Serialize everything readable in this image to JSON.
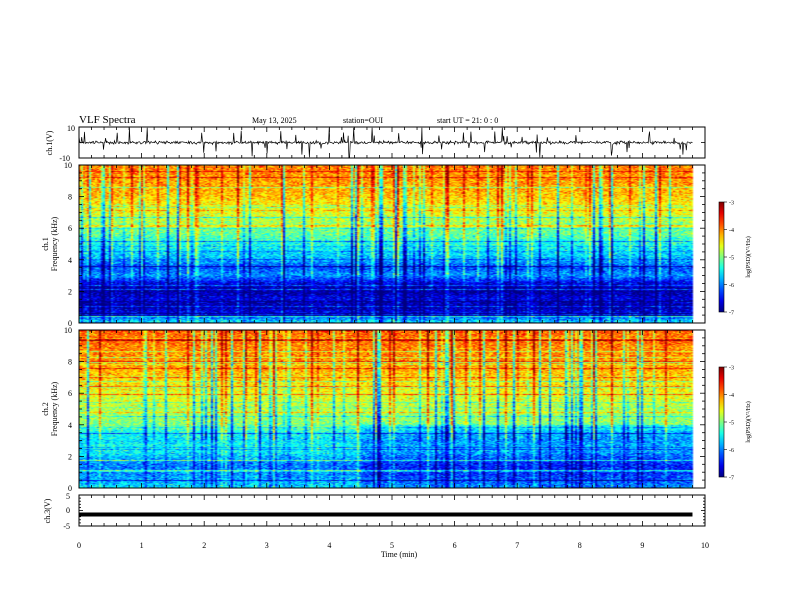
{
  "header": {
    "title": "VLF Spectra",
    "date": "May 13, 2025",
    "station": "station=OUI",
    "start": "start  UT  =   21: 0  : 0"
  },
  "panels": {
    "ch1_wave": {
      "ylabel": "ch.1(V)",
      "ytick_top": "10",
      "ytick_bottom": "-10"
    },
    "ch1_spec": {
      "ylabel_line1": "ch.1",
      "ylabel_line2": "Frequency  (kHz)"
    },
    "ch2_spec": {
      "ylabel_line1": "ch.2",
      "ylabel_line2": "Frequency  (kHz)"
    },
    "ch3_wave": {
      "ylabel": "ch.3(V)",
      "ytick_top": "5",
      "ytick_mid": "0",
      "ytick_bottom": "-5"
    }
  },
  "colorbar": {
    "label": "log(PSD)(V²/Hz)",
    "ticks": [
      "-3",
      "-4",
      "-5",
      "-6",
      "-7"
    ]
  },
  "xaxis": {
    "label": "Time  (min)"
  },
  "chart_data": [
    {
      "type": "line",
      "name": "ch.1(V)",
      "xlabel": "Time (min)",
      "xlim": [
        0,
        10
      ],
      "ylim": [
        -10,
        10
      ],
      "description_level": 0,
      "baseline": 0,
      "data_end_min": 9.8
    },
    {
      "type": "heatmap",
      "name": "ch.1",
      "xlabel": "Time (min)",
      "ylabel": "Frequency (kHz)",
      "xlim": [
        0,
        10
      ],
      "ylim": [
        0,
        10
      ],
      "x_ticks": [
        0,
        1,
        2,
        3,
        4,
        5,
        6,
        7,
        8,
        9,
        10
      ],
      "y_ticks": [
        0,
        2,
        4,
        6,
        8,
        10
      ],
      "colorbar_range": [
        -7,
        -3
      ],
      "data_end_min": 9.8,
      "freq_profile_khz": [
        0,
        0.5,
        1,
        1.5,
        2,
        2.5,
        3,
        3.5,
        4,
        5,
        6,
        7,
        8,
        9,
        10
      ],
      "level_profile": [
        -5.5,
        -6.4,
        -6.9,
        -6.6,
        -6.9,
        -6.6,
        -5.9,
        -6.2,
        -5.8,
        -5.4,
        -5.0,
        -4.6,
        -4.3,
        -4.1,
        -4.0
      ]
    },
    {
      "type": "heatmap",
      "name": "ch.2",
      "xlabel": "Time (min)",
      "ylabel": "Frequency (kHz)",
      "xlim": [
        0,
        10
      ],
      "ylim": [
        0,
        10
      ],
      "x_ticks": [
        0,
        1,
        2,
        3,
        4,
        5,
        6,
        7,
        8,
        9,
        10
      ],
      "y_ticks": [
        0,
        2,
        4,
        6,
        8,
        10
      ],
      "colorbar_range": [
        -7,
        -3
      ],
      "data_end_min": 9.8,
      "freq_profile_khz": [
        0,
        0.5,
        1,
        1.5,
        2,
        2.5,
        3,
        3.5,
        4,
        5,
        6,
        7,
        8,
        9,
        10
      ],
      "level_profile": [
        -5.6,
        -5.8,
        -6.0,
        -6.0,
        -5.7,
        -5.4,
        -5.6,
        -5.4,
        -5.0,
        -4.8,
        -4.6,
        -4.3,
        -4.1,
        -4.0,
        -3.9
      ]
    },
    {
      "type": "line",
      "name": "ch.3(V)",
      "xlabel": "Time (min)",
      "xlim": [
        0,
        10
      ],
      "ylim": [
        -5,
        5
      ],
      "baseline": -1.3,
      "data_end_min": 9.8
    }
  ]
}
